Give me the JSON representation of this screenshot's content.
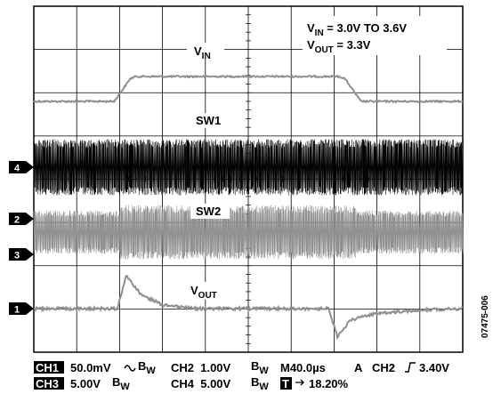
{
  "chart_data": {
    "type": "line",
    "title": "",
    "xlabel": "",
    "ylabel": "",
    "grid": true,
    "grid_divisions": {
      "x": 10,
      "y": 8
    },
    "x_unit": "µs",
    "x_range": [
      0,
      400
    ],
    "annotations": {
      "condition_line1": "VIN = 3.0V TO 3.6V",
      "condition_line2": "VOUT = 3.3V",
      "figure_id": "07475-006"
    },
    "series": [
      {
        "name": "VIN",
        "channel": "CH1",
        "color": "#8f8f8f",
        "x": [
          0,
          75,
          90,
          95,
          285,
          290,
          305,
          400
        ],
        "y": [
          3.0,
          3.0,
          3.55,
          3.6,
          3.6,
          3.55,
          3.0,
          3.0
        ],
        "unit": "V",
        "noise": "low"
      },
      {
        "name": "SW1",
        "channel": "CH4",
        "color": "#000000",
        "pattern": "switching",
        "amplitude_div": 1.3,
        "unit": "V"
      },
      {
        "name": "SW2",
        "channel": "CH2",
        "color": "#8f8f8f",
        "pattern": "switching",
        "amplitude_div": 1.0,
        "enhanced_window_us": [
          80,
          300
        ],
        "unit": "V"
      },
      {
        "name": "VOUT",
        "channel": "CH3",
        "color": "#8f8f8f",
        "x": [
          0,
          78,
          86,
          100,
          120,
          150,
          275,
          283,
          295,
          320,
          360,
          400
        ],
        "y": [
          0,
          0,
          70,
          30,
          8,
          0,
          0,
          -60,
          -25,
          -10,
          -3,
          0
        ],
        "unit": "mV",
        "noise": "medium"
      }
    ],
    "channel_markers": [
      {
        "label": "1",
        "series": "VOUT"
      },
      {
        "label": "2",
        "series": "SW2"
      },
      {
        "label": "3",
        "series": "SW2"
      },
      {
        "label": "4",
        "series": "SW1"
      }
    ]
  },
  "readout": {
    "row1": {
      "ch1_box": "CH1",
      "ch1_setting": "50.0mV",
      "ch1_coupling_icon": "ac-coupling-icon",
      "ch1_bw": "B",
      "ch1_bw_sub": "W",
      "ch2_setting": "CH2  1.00V",
      "ch2_bw": "B",
      "ch2_bw_sub": "W",
      "timebase": "M40.0µs",
      "trigger_mode": "A",
      "trigger_source": "CH2",
      "trigger_slope_icon": "rising-edge-icon",
      "trigger_level": "3.40V"
    },
    "row2": {
      "ch3_box": "CH3",
      "ch3_setting": "5.00V",
      "ch3_bw": "B",
      "ch3_bw_sub": "W",
      "ch4_setting": "CH4  5.00V",
      "ch4_bw": "B",
      "ch4_bw_sub": "W",
      "t_box": "T",
      "trigger_pos_icon": "arrow-right-icon",
      "trigger_position": "18.20%"
    }
  }
}
